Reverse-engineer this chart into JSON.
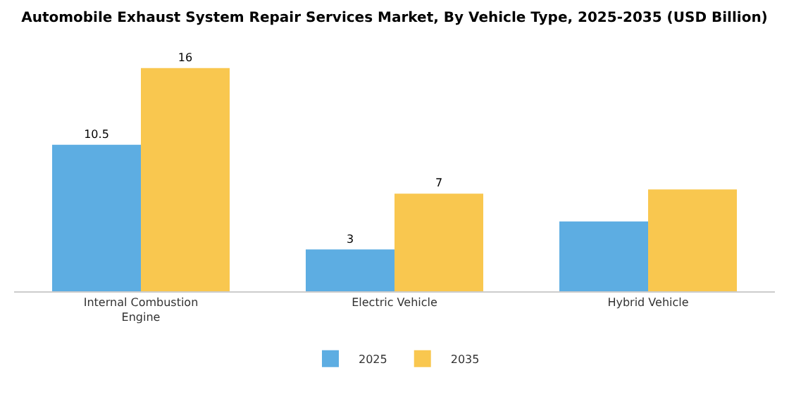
{
  "chart_data": {
    "type": "bar",
    "title": "Automobile Exhaust System Repair Services Market, By Vehicle Type, 2025-2035 (USD Billion)",
    "categories": [
      "Internal Combustion Engine",
      "Electric Vehicle",
      "Hybrid Vehicle"
    ],
    "series": [
      {
        "name": "2025",
        "color": "#5dade2",
        "values": [
          10.5,
          3,
          5.0
        ],
        "value_labels": [
          "10.5",
          "3",
          null
        ]
      },
      {
        "name": "2035",
        "color": "#f9c74f",
        "values": [
          16,
          7,
          7.3
        ],
        "value_labels": [
          "16",
          "7",
          null
        ]
      }
    ],
    "legend": "bottom"
  }
}
